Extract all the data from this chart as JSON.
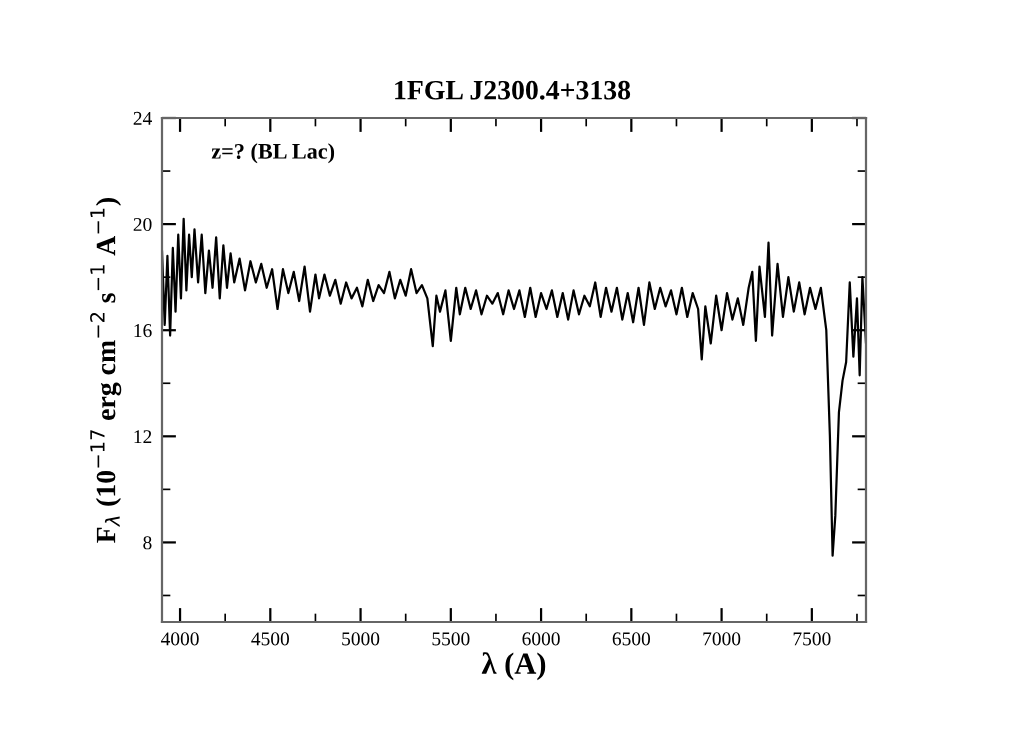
{
  "chart_data": {
    "type": "line",
    "title": "1FGL J2300.4+3138",
    "xlabel": "λ (A)",
    "ylabel": "F$_{λ}$ (10$^{−17}$ erg cm$^{−2}$ s$^{−1}$ A$^{−1}$)",
    "annotations": [
      "z=? (BL Lac)"
    ],
    "xlim": [
      3900,
      7800
    ],
    "ylim": [
      5,
      24
    ],
    "xticks": [
      4000,
      4500,
      5000,
      5500,
      6000,
      6500,
      7000,
      7500
    ],
    "yticks": [
      8,
      12,
      16,
      20,
      24
    ],
    "grid": false,
    "legend": false,
    "marker": "none",
    "line_style": "solid",
    "series": [
      {
        "color": "#000000",
        "x": [
          3900,
          3915,
          3930,
          3945,
          3960,
          3975,
          3990,
          4005,
          4020,
          4035,
          4050,
          4065,
          4080,
          4100,
          4120,
          4140,
          4160,
          4180,
          4200,
          4220,
          4240,
          4260,
          4280,
          4300,
          4330,
          4360,
          4390,
          4420,
          4450,
          4480,
          4510,
          4540,
          4570,
          4600,
          4630,
          4660,
          4690,
          4720,
          4750,
          4770,
          4800,
          4830,
          4860,
          4890,
          4920,
          4950,
          4980,
          5010,
          5040,
          5070,
          5100,
          5130,
          5160,
          5190,
          5220,
          5250,
          5280,
          5310,
          5340,
          5370,
          5400,
          5420,
          5440,
          5470,
          5500,
          5530,
          5550,
          5580,
          5610,
          5640,
          5670,
          5700,
          5730,
          5760,
          5790,
          5820,
          5850,
          5880,
          5910,
          5940,
          5970,
          6000,
          6030,
          6060,
          6090,
          6120,
          6150,
          6180,
          6210,
          6240,
          6270,
          6300,
          6330,
          6360,
          6390,
          6420,
          6450,
          6480,
          6510,
          6540,
          6570,
          6600,
          6630,
          6660,
          6690,
          6720,
          6750,
          6780,
          6810,
          6840,
          6870,
          6890,
          6910,
          6940,
          6970,
          7000,
          7030,
          7060,
          7090,
          7120,
          7150,
          7170,
          7190,
          7210,
          7240,
          7260,
          7280,
          7310,
          7340,
          7370,
          7400,
          7430,
          7460,
          7490,
          7520,
          7550,
          7580,
          7600,
          7615,
          7630,
          7650,
          7670,
          7690,
          7710,
          7730,
          7750,
          7765,
          7780,
          7800
        ],
        "values": [
          19.0,
          16.2,
          18.8,
          15.8,
          19.1,
          16.7,
          19.6,
          17.2,
          20.2,
          17.5,
          19.6,
          18.0,
          19.8,
          17.8,
          19.6,
          17.4,
          19.0,
          17.6,
          19.5,
          17.2,
          19.2,
          17.6,
          18.9,
          17.8,
          18.7,
          17.5,
          18.6,
          17.8,
          18.5,
          17.6,
          18.3,
          16.8,
          18.3,
          17.4,
          18.2,
          17.1,
          18.4,
          16.7,
          18.1,
          17.2,
          18.1,
          17.3,
          17.9,
          17.0,
          17.8,
          17.2,
          17.6,
          16.9,
          17.9,
          17.1,
          17.7,
          17.4,
          18.2,
          17.2,
          17.9,
          17.3,
          18.3,
          17.4,
          17.7,
          17.2,
          15.4,
          17.3,
          16.7,
          17.5,
          15.6,
          17.6,
          16.6,
          17.6,
          16.8,
          17.5,
          16.6,
          17.3,
          17.0,
          17.4,
          16.6,
          17.5,
          16.8,
          17.5,
          16.5,
          17.6,
          16.5,
          17.4,
          16.8,
          17.5,
          16.5,
          17.4,
          16.4,
          17.5,
          16.6,
          17.3,
          16.9,
          17.8,
          16.5,
          17.6,
          16.7,
          17.6,
          16.4,
          17.4,
          16.3,
          17.6,
          16.2,
          17.8,
          16.8,
          17.6,
          16.9,
          17.5,
          16.6,
          17.6,
          16.5,
          17.4,
          16.8,
          14.9,
          16.9,
          15.5,
          17.3,
          16.0,
          17.4,
          16.4,
          17.2,
          16.2,
          17.6,
          18.2,
          15.6,
          18.4,
          16.5,
          19.3,
          15.8,
          18.5,
          16.5,
          18.0,
          16.7,
          17.8,
          16.6,
          17.6,
          16.8,
          17.6,
          16.0,
          12.0,
          7.5,
          9.0,
          12.9,
          14.1,
          14.8,
          17.8,
          15.0,
          17.2,
          14.3,
          18.0,
          15.5
        ]
      }
    ]
  }
}
